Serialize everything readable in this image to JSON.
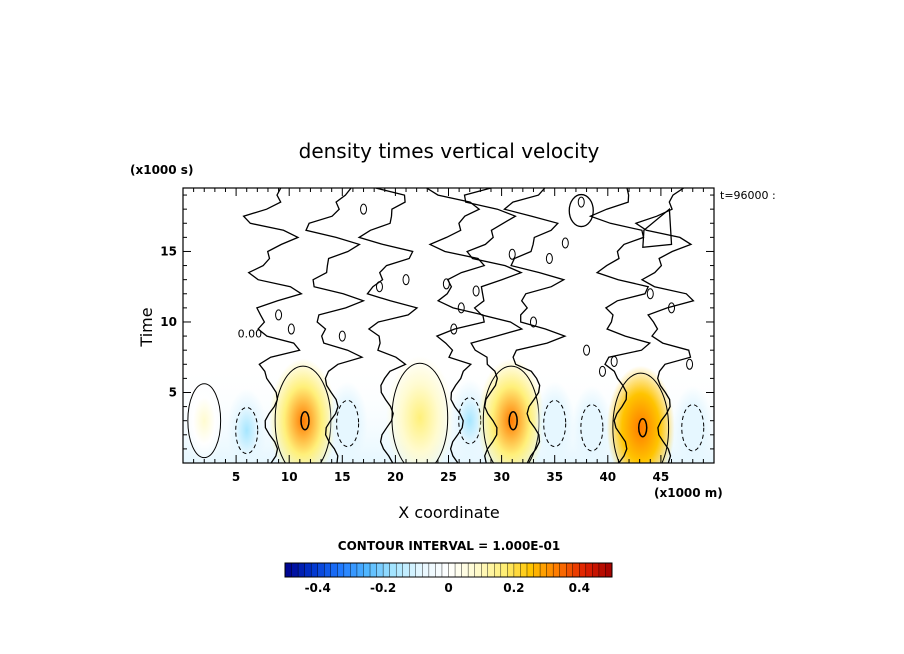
{
  "chart_data": {
    "type": "heatmap",
    "title": "density times vertical velocity",
    "xlabel": "X coordinate",
    "ylabel": "Time",
    "x_unit": "(x1000 m)",
    "y_unit": "(x1000 s)",
    "time_stamp": "t=96000 :",
    "xlim": [
      0,
      50
    ],
    "ylim": [
      0,
      19.5
    ],
    "x_ticks": [
      "5",
      "10",
      "15",
      "20",
      "25",
      "30",
      "35",
      "40",
      "45"
    ],
    "y_ticks": [
      "5",
      "10",
      "15"
    ],
    "contour_interval_text": "CONTOUR INTERVAL = 1.000E-01",
    "contour_label": "0.00",
    "colorbar": {
      "range": [
        -0.5,
        0.5
      ],
      "ticks": [
        "-0.4",
        "-0.2",
        "0",
        "0.2",
        "0.4"
      ],
      "colors_low_to_high": [
        "#00008b",
        "#0033cc",
        "#1e78ff",
        "#4fb6ff",
        "#a6e6ff",
        "#e6f7ff",
        "#ffffff",
        "#fffbd0",
        "#fff07a",
        "#ffc400",
        "#ff7a00",
        "#e02000",
        "#a00000"
      ]
    },
    "features": [
      {
        "x": 2,
        "t": 3.0,
        "value": 0.05
      },
      {
        "x": 6,
        "t": 2.3,
        "value": -0.15
      },
      {
        "x": 11.3,
        "t": 3.0,
        "value": 0.32
      },
      {
        "x": 15.5,
        "t": 2.8,
        "value": -0.1
      },
      {
        "x": 22.3,
        "t": 3.2,
        "value": 0.2
      },
      {
        "x": 27,
        "t": 3.0,
        "value": -0.15
      },
      {
        "x": 30.9,
        "t": 3.0,
        "value": 0.3
      },
      {
        "x": 35,
        "t": 2.8,
        "value": -0.1
      },
      {
        "x": 38.5,
        "t": 2.5,
        "value": -0.1
      },
      {
        "x": 43.1,
        "t": 2.5,
        "value": 0.35
      },
      {
        "x": 48,
        "t": 2.5,
        "value": -0.12
      }
    ]
  }
}
